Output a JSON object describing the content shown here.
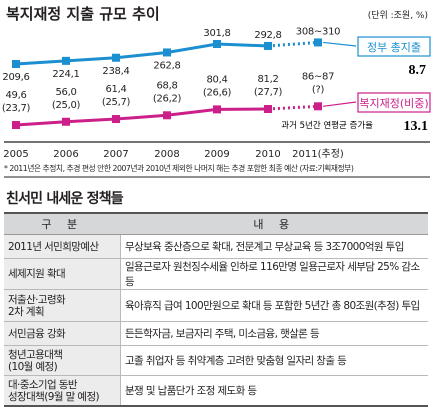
{
  "chart_data": {
    "type": "line",
    "title": "복지재정 지출 규모 추이",
    "unit_note": "(단위 :조원, %)",
    "x": [
      "2005",
      "2006",
      "2007",
      "2008",
      "2009",
      "2010",
      "2011(추정)"
    ],
    "ylim": [
      0,
      350
    ],
    "series": [
      {
        "name": "정부 총지출",
        "color": "#1b8fd0",
        "values": [
          209.6,
          224.1,
          238.4,
          262.8,
          301.8,
          292.8,
          309
        ],
        "labels": [
          "209,6",
          "224,1",
          "238,4",
          "262,8",
          "301,8",
          "292,8",
          "308~310"
        ],
        "growth": "8.7"
      },
      {
        "name": "복지재정(비중)",
        "color": "#cc1f8a",
        "values": [
          49.6,
          56.0,
          61.4,
          68.8,
          80.4,
          81.2,
          86.5
        ],
        "labels": [
          "49,6",
          "56,0",
          "61,4",
          "68,8",
          "80,4",
          "81,2",
          "86~87"
        ],
        "shares": [
          "(23,7)",
          "(25,0)",
          "(25,7)",
          "(26,2)",
          "(26,6)",
          "(27,7)",
          "(?)"
        ],
        "growth": "13.1"
      }
    ],
    "growth_caption": "과거 5년간 연평균 증가율",
    "footnote": "* 2011년은 추정치, 추경 편성 안한 2007년과 2010년 제외한 나머지 해는 추경 포함한 최종 예산 (자료:기획재정부)"
  },
  "policy_table": {
    "title": "친서민 내세운 정책들",
    "headers": [
      "구 분",
      "내 용"
    ],
    "rows": [
      {
        "category": [
          "2011년 서민희망예산"
        ],
        "content": "무상보육 중산층으로 확대, 전문계고 무상교육 등 3조7000억원 투입"
      },
      {
        "category": [
          "세제지원 확대"
        ],
        "content": "일용근로자 원천징수세율 인하로 116만명 일용근로자 세부담 25% 감소 등"
      },
      {
        "category": [
          "저출산·고령화",
          "2차 계획"
        ],
        "content": "육아휴직 급여 100만원으로 확대 등 포함한 5년간 총 80조원(추정) 투입"
      },
      {
        "category": [
          "서민금융 강화"
        ],
        "content": "든든학자금, 보금자리 주택, 미소금융, 햇살론 등"
      },
      {
        "category": [
          "청년고용대책",
          "(10월 예정)"
        ],
        "content": "고졸 취업자 등 취약계층 고려한 맞춤형 일자리 창출 등"
      },
      {
        "category": [
          "대·중소기업 동반",
          "성장대책(9월 말 예정)"
        ],
        "content": "분쟁 및 납품단가 조정 제도화 등"
      }
    ]
  }
}
